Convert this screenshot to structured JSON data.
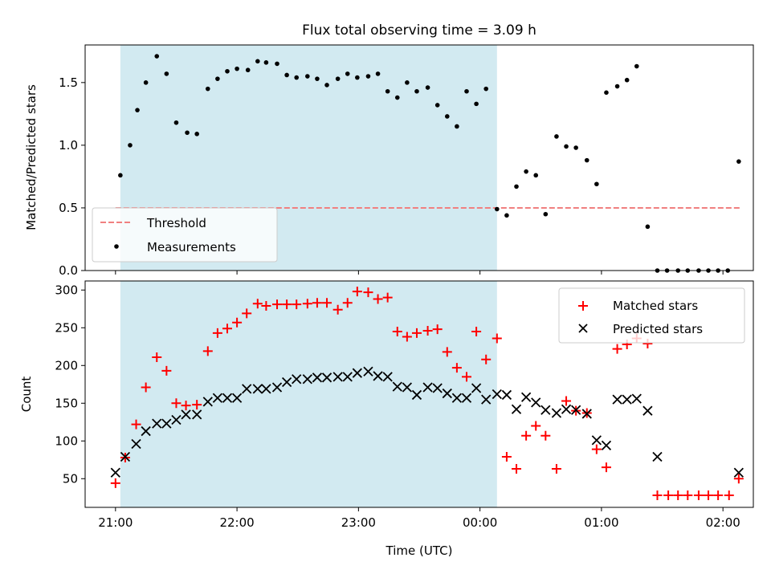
{
  "title": "Flux total observing time = 3.09 h",
  "colors": {
    "shade": "#add8e6",
    "threshold": "#f08080",
    "matched": "#ff0000",
    "predicted": "#000000",
    "measurements": "#000000"
  },
  "chart_data": [
    {
      "type": "scatter",
      "panel": "top",
      "ylabel": "Matched/Predicted stars",
      "xlim": [
        -0.25,
        5.25
      ],
      "ylim": [
        0,
        1.8
      ],
      "yticks": [
        0.0,
        0.5,
        1.0,
        1.5
      ],
      "ytick_labels": [
        "0.0",
        "0.5",
        "1.0",
        "1.5"
      ],
      "shaded_interval": [
        0.04,
        3.14
      ],
      "legend": {
        "placement": "lower-left",
        "entries": [
          "Threshold",
          "Measurements"
        ]
      },
      "threshold": {
        "name": "Threshold",
        "x": [
          0.0,
          5.14
        ],
        "y": 0.5
      },
      "series": [
        {
          "name": "Measurements",
          "x": [
            0.04,
            0.12,
            0.18,
            0.25,
            0.34,
            0.42,
            0.5,
            0.59,
            0.67,
            0.76,
            0.84,
            0.92,
            1.0,
            1.09,
            1.17,
            1.24,
            1.33,
            1.41,
            1.49,
            1.58,
            1.66,
            1.74,
            1.83,
            1.91,
            1.99,
            2.08,
            2.16,
            2.24,
            2.32,
            2.4,
            2.48,
            2.57,
            2.65,
            2.73,
            2.81,
            2.89,
            2.97,
            3.05,
            3.14,
            3.22,
            3.3,
            3.38,
            3.46,
            3.54,
            3.63,
            3.71,
            3.79,
            3.88,
            3.96,
            4.04,
            4.13,
            4.21,
            4.29,
            4.38,
            4.46,
            4.54,
            4.63,
            4.71,
            4.8,
            4.88,
            4.96,
            5.04,
            5.13
          ],
          "y": [
            0.76,
            1.0,
            1.28,
            1.5,
            1.71,
            1.57,
            1.18,
            1.1,
            1.09,
            1.45,
            1.53,
            1.59,
            1.61,
            1.6,
            1.67,
            1.66,
            1.65,
            1.56,
            1.54,
            1.55,
            1.53,
            1.48,
            1.53,
            1.57,
            1.54,
            1.55,
            1.57,
            1.43,
            1.38,
            1.5,
            1.43,
            1.46,
            1.32,
            1.23,
            1.15,
            1.43,
            1.33,
            1.45,
            0.49,
            0.44,
            0.67,
            0.79,
            0.76,
            0.45,
            1.07,
            0.99,
            0.98,
            0.88,
            0.69,
            1.42,
            1.47,
            1.52,
            1.63,
            0.35,
            0.0,
            0.0,
            0.0,
            0.0,
            0.0,
            0.0,
            0.0,
            0.0,
            0.87
          ]
        }
      ]
    },
    {
      "type": "scatter",
      "panel": "bottom",
      "ylabel": "Count",
      "xlabel": "Time (UTC)",
      "xlim": [
        -0.25,
        5.25
      ],
      "ylim": [
        12,
        312
      ],
      "xticks": [
        0,
        1,
        2,
        3,
        4,
        5
      ],
      "xtick_labels": [
        "21:00",
        "22:00",
        "23:00",
        "00:00",
        "01:00",
        "02:00"
      ],
      "yticks": [
        50,
        100,
        150,
        200,
        250,
        300
      ],
      "ytick_labels": [
        "50",
        "100",
        "150",
        "200",
        "250",
        "300"
      ],
      "shaded_interval": [
        0.04,
        3.14
      ],
      "legend": {
        "placement": "upper-right",
        "entries": [
          "Matched stars",
          "Predicted stars"
        ]
      },
      "series": [
        {
          "name": "Matched stars",
          "marker": "plus",
          "x": [
            0.0,
            0.08,
            0.17,
            0.25,
            0.34,
            0.42,
            0.5,
            0.58,
            0.67,
            0.76,
            0.84,
            0.92,
            1.0,
            1.08,
            1.17,
            1.24,
            1.33,
            1.41,
            1.49,
            1.58,
            1.66,
            1.74,
            1.83,
            1.91,
            1.99,
            2.08,
            2.16,
            2.24,
            2.32,
            2.4,
            2.48,
            2.57,
            2.65,
            2.73,
            2.81,
            2.89,
            2.97,
            3.05,
            3.14,
            3.22,
            3.3,
            3.38,
            3.46,
            3.54,
            3.63,
            3.71,
            3.79,
            3.88,
            3.96,
            4.04,
            4.13,
            4.21,
            4.29,
            4.38,
            4.46,
            4.55,
            4.63,
            4.71,
            4.8,
            4.88,
            4.96,
            5.05,
            5.13
          ],
          "y": [
            44,
            78,
            122,
            171,
            211,
            193,
            150,
            147,
            148,
            219,
            243,
            249,
            257,
            269,
            282,
            279,
            281,
            281,
            281,
            282,
            283,
            283,
            274,
            283,
            298,
            297,
            288,
            290,
            245,
            238,
            243,
            246,
            248,
            218,
            197,
            185,
            245,
            208,
            236,
            79,
            63,
            107,
            120,
            107,
            63,
            153,
            140,
            137,
            89,
            65,
            222,
            228,
            236,
            229,
            28,
            28,
            28,
            28,
            28,
            28,
            28,
            28,
            50
          ]
        },
        {
          "name": "Predicted stars",
          "marker": "x",
          "x": [
            0.0,
            0.08,
            0.17,
            0.25,
            0.34,
            0.42,
            0.5,
            0.58,
            0.67,
            0.76,
            0.84,
            0.92,
            1.0,
            1.08,
            1.17,
            1.24,
            1.33,
            1.41,
            1.49,
            1.58,
            1.66,
            1.74,
            1.83,
            1.91,
            1.99,
            2.08,
            2.16,
            2.24,
            2.32,
            2.4,
            2.48,
            2.57,
            2.65,
            2.73,
            2.81,
            2.89,
            2.97,
            3.05,
            3.14,
            3.22,
            3.3,
            3.38,
            3.46,
            3.54,
            3.63,
            3.71,
            3.79,
            3.88,
            3.96,
            4.04,
            4.13,
            4.21,
            4.29,
            4.38,
            4.46,
            5.13
          ],
          "y": [
            58,
            79,
            96,
            113,
            123,
            123,
            128,
            135,
            135,
            152,
            157,
            157,
            157,
            169,
            169,
            169,
            171,
            178,
            182,
            182,
            184,
            184,
            185,
            185,
            190,
            192,
            186,
            185,
            172,
            171,
            161,
            171,
            170,
            163,
            157,
            157,
            170,
            155,
            162,
            161,
            142,
            158,
            151,
            141,
            137,
            142,
            141,
            136,
            101,
            94,
            155,
            155,
            156,
            140,
            79,
            58
          ]
        }
      ]
    }
  ]
}
